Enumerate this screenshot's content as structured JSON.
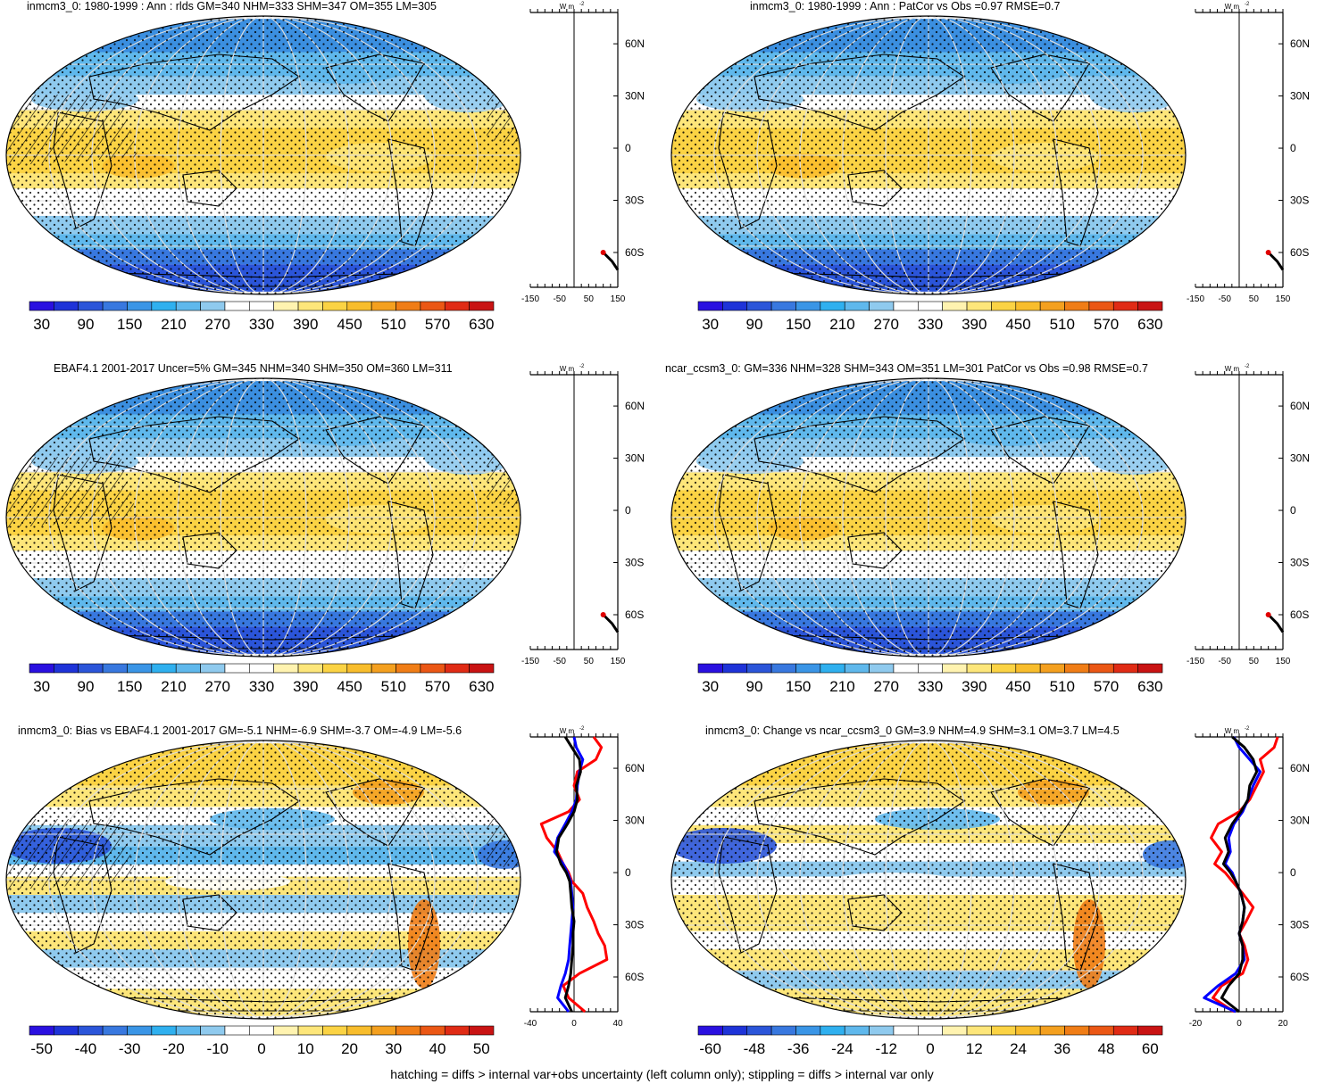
{
  "footer": "hatching = diffs > internal var+obs uncertainty (left column only); stippling = diffs > internal var only",
  "units": "W m",
  "units_sup": "-2",
  "lat_labels": [
    "60N",
    "30N",
    "0",
    "30S",
    "60S"
  ],
  "colors": {
    "abs": [
      "#2a10e0",
      "#1e33d8",
      "#2b55d9",
      "#3878df",
      "#3a95e6",
      "#2fb0ef",
      "#5fb8ec",
      "#8fcaee",
      "#ffffff",
      "#ffffff",
      "#fff3b0",
      "#fde67a",
      "#fbd344",
      "#f8bd2c",
      "#f4a01f",
      "#f07d16",
      "#eb5715",
      "#e02b15",
      "#c91313"
    ],
    "bias": [
      "#2a10e0",
      "#1e33d8",
      "#2b55d9",
      "#3878df",
      "#3a95e6",
      "#2fb0ef",
      "#5fb8ec",
      "#8fcaee",
      "#ffffff",
      "#ffffff",
      "#fff3b0",
      "#fde67a",
      "#fbd344",
      "#f8bd2c",
      "#f4a01f",
      "#f07d16",
      "#eb5715",
      "#e02b15",
      "#c91313"
    ]
  },
  "panels": [
    {
      "title": "inmcm3_0: 1980-1999 : Ann : rlds GM=340 NHM=333 SHM=347 OM=355 LM=305",
      "kind": "abs",
      "hatched": true,
      "colorbar": [
        "30",
        "90",
        "150",
        "210",
        "270",
        "330",
        "390",
        "450",
        "510",
        "570",
        "630"
      ],
      "profile_ticks": [
        "-150",
        "-50",
        "50",
        "150"
      ]
    },
    {
      "title": "inmcm3_0: 1980-1999 : Ann : PatCor vs Obs =0.97 RMSE=0.7",
      "kind": "abs",
      "hatched": false,
      "colorbar": [
        "30",
        "90",
        "150",
        "210",
        "270",
        "330",
        "390",
        "450",
        "510",
        "570",
        "630"
      ],
      "profile_ticks": [
        "-150",
        "-50",
        "50",
        "150"
      ]
    },
    {
      "title": "EBAF4.1 2001-2017 Uncer=5% GM=345 NHM=340 SHM=350 OM=360 LM=311",
      "kind": "abs",
      "hatched": true,
      "colorbar": [
        "30",
        "90",
        "150",
        "210",
        "270",
        "330",
        "390",
        "450",
        "510",
        "570",
        "630"
      ],
      "profile_ticks": [
        "-150",
        "-50",
        "50",
        "150"
      ]
    },
    {
      "title": "ncar_ccsm3_0: GM=336 NHM=328 SHM=343 OM=351 LM=301 PatCor vs Obs =0.98 RMSE=0.7",
      "kind": "abs",
      "hatched": false,
      "colorbar": [
        "30",
        "90",
        "150",
        "210",
        "270",
        "330",
        "390",
        "450",
        "510",
        "570",
        "630"
      ],
      "profile_ticks": [
        "-150",
        "-50",
        "50",
        "150"
      ]
    },
    {
      "title": "inmcm3_0: Bias vs EBAF4.1 2001-2017 GM=-5.1 NHM=-6.9 SHM=-3.7 OM=-4.9 LM=-5.6",
      "kind": "bias",
      "hatched": true,
      "colorbar": [
        "-50",
        "-40",
        "-30",
        "-20",
        "-10",
        "0",
        "10",
        "20",
        "30",
        "40",
        "50"
      ],
      "profile_ticks": [
        "-40",
        "0",
        "40"
      ]
    },
    {
      "title": "inmcm3_0: Change vs ncar_ccsm3_0 GM=3.9 NHM=4.9 SHM=3.1 OM=3.7 LM=4.5",
      "kind": "bias",
      "hatched": false,
      "colorbar": [
        "-60",
        "-48",
        "-36",
        "-24",
        "-12",
        "0",
        "12",
        "24",
        "36",
        "48",
        "60"
      ],
      "profile_ticks": [
        "-20",
        "0",
        "20"
      ]
    }
  ],
  "chart_data": [
    {
      "type": "heatmap",
      "title": "inmcm3_0: 1980-1999 : Ann : rlds GM=340 NHM=333 SHM=347 OM=355 LM=305",
      "colorbar": [
        30,
        90,
        150,
        210,
        270,
        330,
        390,
        450,
        510,
        570,
        630
      ],
      "zonal_profile": {
        "xlim": [
          -150,
          150
        ],
        "lat": [
          -70,
          -65,
          -60
        ],
        "values": [
          150,
          130,
          100
        ]
      }
    },
    {
      "type": "heatmap",
      "title": "inmcm3_0: 1980-1999 : Ann : PatCor vs Obs =0.97 RMSE=0.7",
      "colorbar": [
        30,
        90,
        150,
        210,
        270,
        330,
        390,
        450,
        510,
        570,
        630
      ],
      "zonal_profile": {
        "xlim": [
          -150,
          150
        ],
        "lat": [
          -70,
          -65,
          -60
        ],
        "values": [
          150,
          130,
          100
        ]
      }
    },
    {
      "type": "heatmap",
      "title": "EBAF4.1 2001-2017 Uncer=5% GM=345 NHM=340 SHM=350 OM=360 LM=311",
      "colorbar": [
        30,
        90,
        150,
        210,
        270,
        330,
        390,
        450,
        510,
        570,
        630
      ],
      "zonal_profile": {
        "xlim": [
          -150,
          150
        ],
        "lat": [
          -70,
          -65,
          -60
        ],
        "values": [
          150,
          130,
          100
        ]
      }
    },
    {
      "type": "heatmap",
      "title": "ncar_ccsm3_0: GM=336 NHM=328 SHM=343 OM=351 LM=301 PatCor vs Obs =0.98 RMSE=0.7",
      "colorbar": [
        30,
        90,
        150,
        210,
        270,
        330,
        390,
        450,
        510,
        570,
        630
      ],
      "zonal_profile": {
        "xlim": [
          -150,
          150
        ],
        "lat": [
          -70,
          -65,
          -60
        ],
        "values": [
          150,
          130,
          100
        ]
      }
    },
    {
      "type": "heatmap",
      "title": "inmcm3_0: Bias vs EBAF4.1 2001-2017 GM=-5.1 NHM=-6.9 SHM=-3.7 OM=-4.9 LM=-5.6",
      "colorbar": [
        -50,
        -40,
        -30,
        -20,
        -10,
        0,
        10,
        20,
        30,
        40,
        50
      ],
      "zonal_profile": {
        "xlim": [
          -40,
          40
        ],
        "lat": [
          -80,
          -72,
          -65,
          -58,
          -50,
          -42,
          -35,
          -28,
          -20,
          -12,
          -5,
          0,
          5,
          12,
          20,
          28,
          35,
          42,
          50,
          58,
          65,
          72,
          78
        ],
        "series": [
          {
            "color": "#ff0000",
            "values": [
              10,
              -5,
              -10,
              5,
              30,
              28,
              22,
              18,
              12,
              8,
              -2,
              -5,
              -10,
              -15,
              -25,
              -30,
              -5,
              5,
              0,
              3,
              20,
              25,
              18
            ]
          },
          {
            "color": "#0000ff",
            "values": [
              -5,
              -15,
              -12,
              -8,
              -5,
              -4,
              -3,
              -2,
              -1,
              -2,
              -3,
              -6,
              -10,
              -18,
              -15,
              -8,
              -2,
              2,
              3,
              5,
              8,
              2,
              0
            ]
          },
          {
            "color": "#000000",
            "values": [
              -2,
              -8,
              -5,
              -3,
              -2,
              -1,
              -1,
              0,
              -2,
              -3,
              -4,
              -7,
              -12,
              -16,
              -14,
              -6,
              0,
              3,
              2,
              6,
              5,
              -2,
              -8
            ]
          }
        ]
      }
    },
    {
      "type": "heatmap",
      "title": "inmcm3_0: Change vs ncar_ccsm3_0 GM=3.9 NHM=4.9 SHM=3.1 OM=3.7 LM=4.5",
      "colorbar": [
        -60,
        -48,
        -36,
        -24,
        -12,
        0,
        12,
        24,
        36,
        48,
        60
      ],
      "zonal_profile": {
        "xlim": [
          -25,
          25
        ],
        "lat": [
          -80,
          -72,
          -65,
          -58,
          -50,
          -42,
          -35,
          -28,
          -20,
          -12,
          -5,
          0,
          5,
          12,
          20,
          28,
          35,
          42,
          50,
          58,
          65,
          72,
          78
        ],
        "series": [
          {
            "color": "#ff0000",
            "values": [
              -3,
              -15,
              -10,
              2,
              5,
              3,
              0,
              4,
              8,
              2,
              -4,
              -8,
              -14,
              -10,
              -16,
              -12,
              0,
              6,
              10,
              14,
              12,
              20,
              22
            ]
          },
          {
            "color": "#0000ff",
            "values": [
              -2,
              -20,
              -12,
              -2,
              3,
              2,
              0,
              2,
              3,
              1,
              -2,
              -4,
              -8,
              -5,
              -6,
              -3,
              2,
              5,
              8,
              12,
              6,
              0,
              -3
            ]
          },
          {
            "color": "#000000",
            "values": [
              0,
              -10,
              -6,
              0,
              2,
              2,
              0,
              2,
              3,
              1,
              -2,
              -5,
              -9,
              -6,
              -8,
              -4,
              1,
              5,
              6,
              10,
              8,
              3,
              -4
            ]
          }
        ]
      }
    }
  ]
}
